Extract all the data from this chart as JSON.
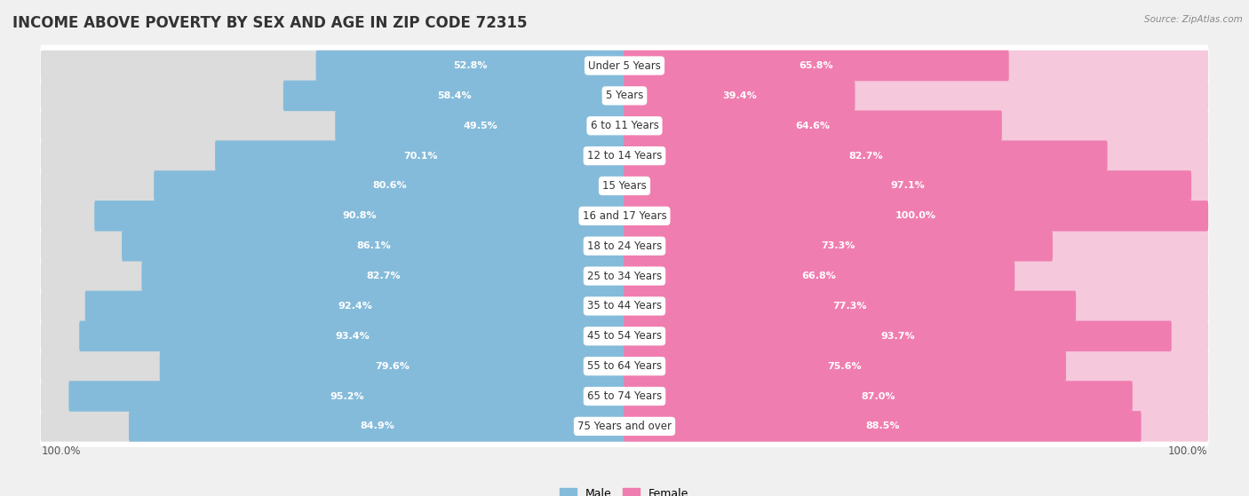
{
  "title": "INCOME ABOVE POVERTY BY SEX AND AGE IN ZIP CODE 72315",
  "source": "Source: ZipAtlas.com",
  "categories": [
    "Under 5 Years",
    "5 Years",
    "6 to 11 Years",
    "12 to 14 Years",
    "15 Years",
    "16 and 17 Years",
    "18 to 24 Years",
    "25 to 34 Years",
    "35 to 44 Years",
    "45 to 54 Years",
    "55 to 64 Years",
    "65 to 74 Years",
    "75 Years and over"
  ],
  "male_values": [
    52.8,
    58.4,
    49.5,
    70.1,
    80.6,
    90.8,
    86.1,
    82.7,
    92.4,
    93.4,
    79.6,
    95.2,
    84.9
  ],
  "female_values": [
    65.8,
    39.4,
    64.6,
    82.7,
    97.1,
    100.0,
    73.3,
    66.8,
    77.3,
    93.7,
    75.6,
    87.0,
    88.5
  ],
  "male_color": "#85BBDA",
  "female_color": "#F07DB0",
  "female_color_light": "#F9B8D6",
  "bg_color": "#F0F0F0",
  "row_bg_odd": "#E8E8E8",
  "row_bg_even": "#F5F5F5",
  "title_fontsize": 12,
  "label_fontsize": 8.5,
  "value_fontsize": 8,
  "axis_max": 100.0,
  "legend_male": "Male",
  "legend_female": "Female"
}
